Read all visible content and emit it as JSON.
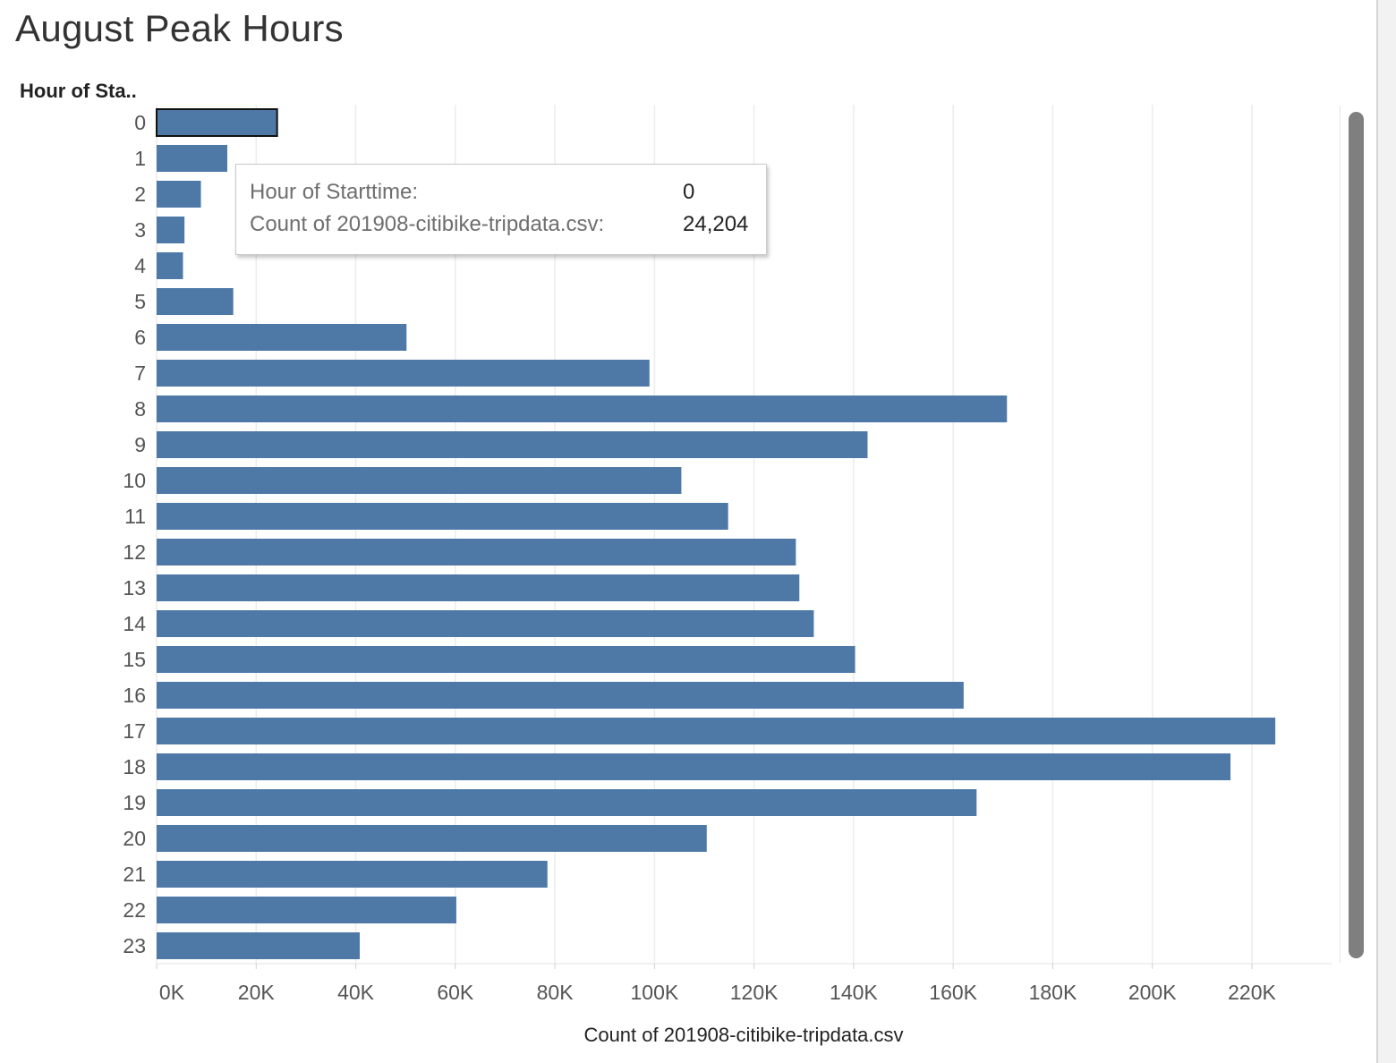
{
  "title": "August Peak Hours",
  "colors": {
    "bar": "#4e79a7",
    "grid": "#ececec",
    "selected_outline": "#111111"
  },
  "tooltip": {
    "row1_label": "Hour of Starttime:",
    "row1_value": "0",
    "row2_label": "Count of 201908-citibike-tripdata.csv:",
    "row2_value": "24,204"
  },
  "chart_data": {
    "type": "bar",
    "orientation": "horizontal",
    "title": "August Peak Hours",
    "ylabel": "Hour of Sta..",
    "xlabel": "Count of 201908-citibike-tripdata.csv",
    "xlim": [
      0,
      236000
    ],
    "grid": true,
    "categories": [
      "0",
      "1",
      "2",
      "3",
      "4",
      "5",
      "6",
      "7",
      "8",
      "9",
      "10",
      "11",
      "12",
      "13",
      "14",
      "15",
      "16",
      "17",
      "18",
      "19",
      "20",
      "21",
      "22",
      "23"
    ],
    "values": [
      24204,
      14200,
      8900,
      5600,
      5300,
      15400,
      50200,
      99000,
      170800,
      142800,
      105400,
      114800,
      128400,
      129100,
      132000,
      140300,
      162100,
      224700,
      215700,
      164700,
      110500,
      78500,
      60200,
      40800
    ],
    "selected_index": 0,
    "xticks": [
      0,
      20000,
      40000,
      60000,
      80000,
      100000,
      120000,
      140000,
      160000,
      180000,
      200000,
      220000
    ],
    "xtick_labels": [
      "0K",
      "20K",
      "40K",
      "60K",
      "80K",
      "100K",
      "120K",
      "140K",
      "160K",
      "180K",
      "200K",
      "220K"
    ]
  }
}
